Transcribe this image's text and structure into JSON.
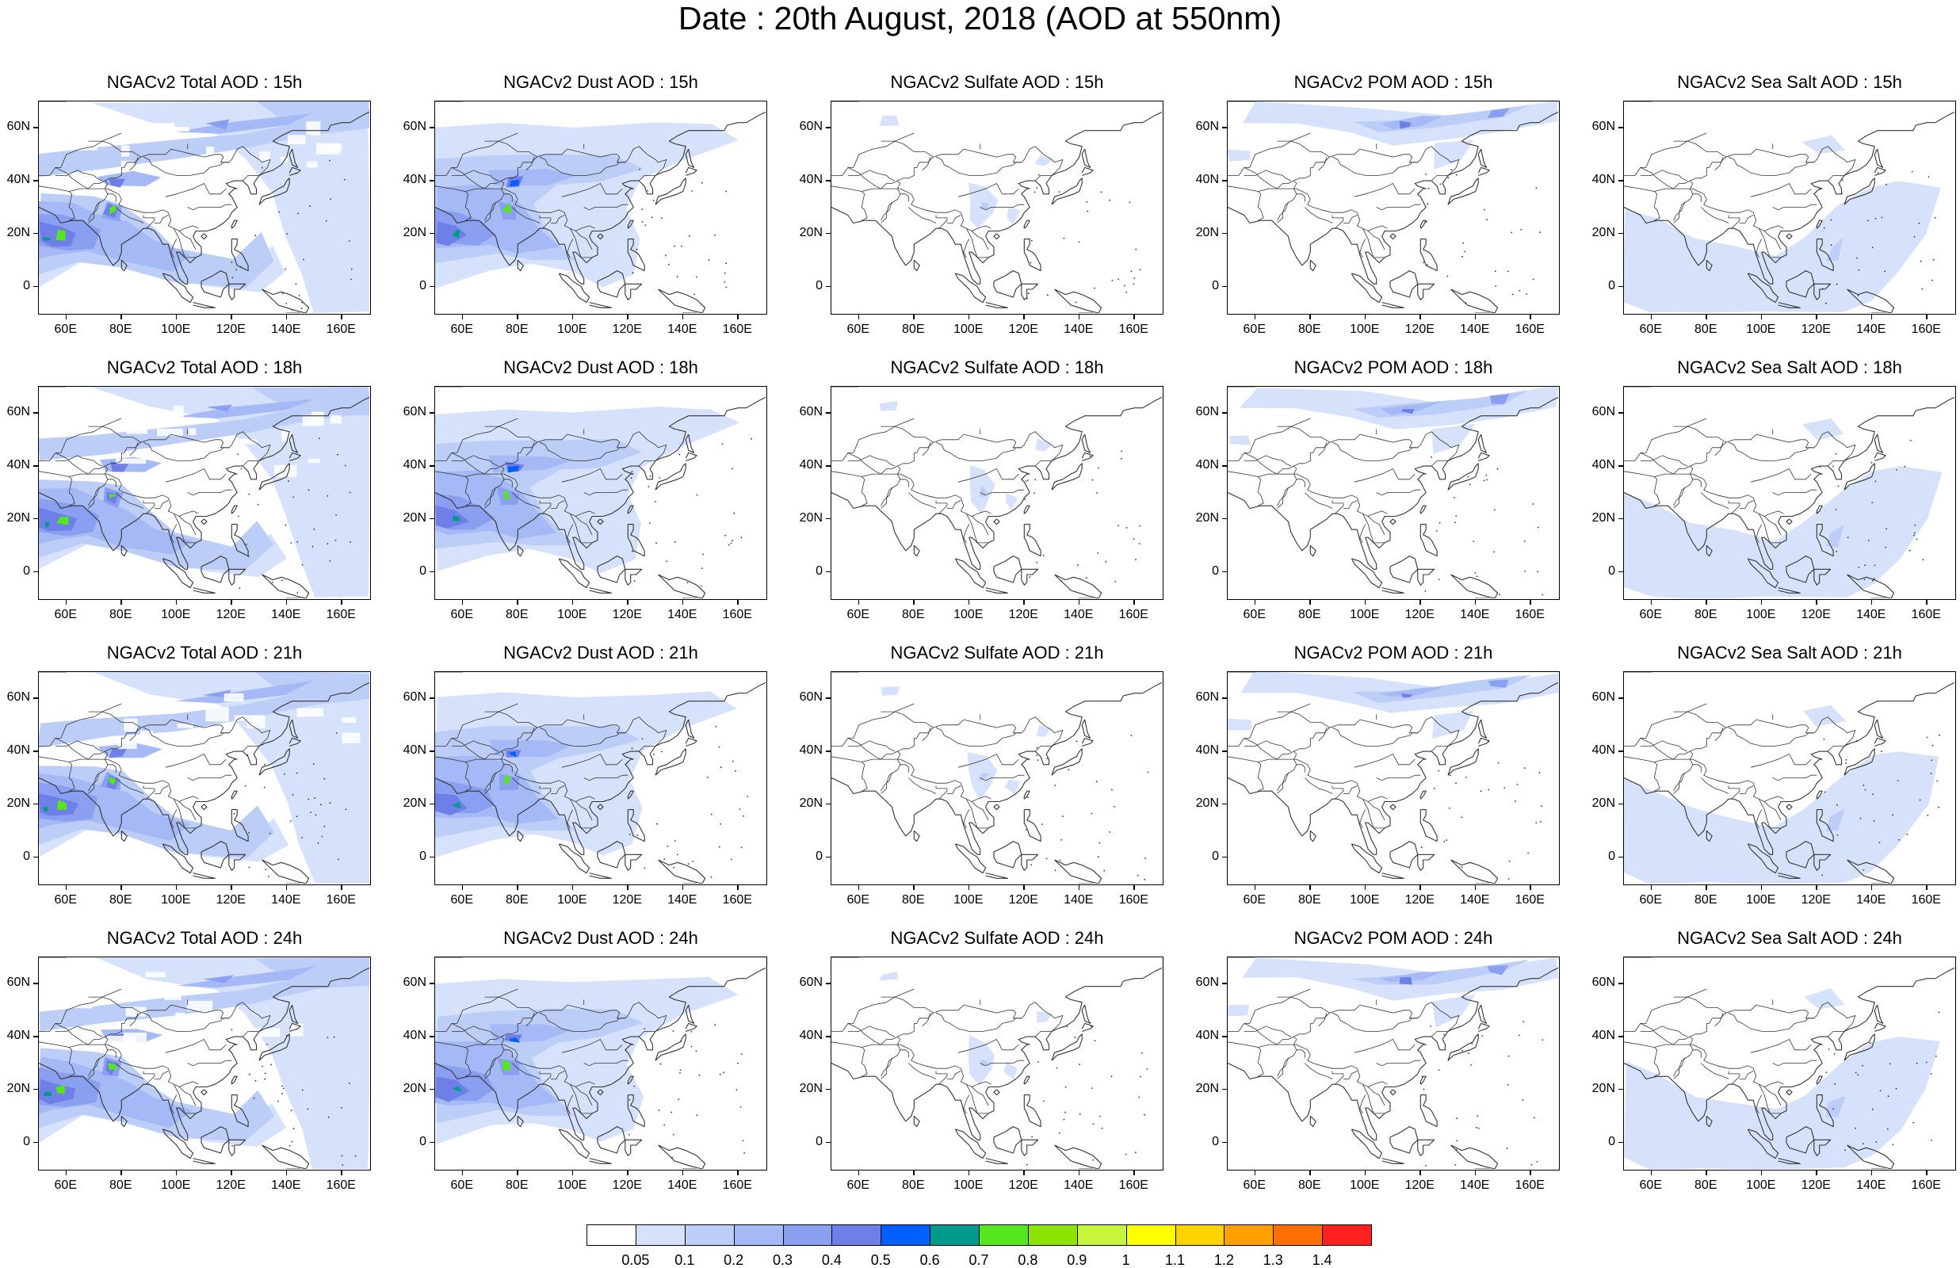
{
  "title": "Date : 20th August, 2018 (AOD at 550nm)",
  "lat_ticks": [
    "60N",
    "40N",
    "20N",
    "0"
  ],
  "lon_ticks": [
    "60E",
    "80E",
    "100E",
    "120E",
    "140E",
    "160E"
  ],
  "map_extent": {
    "lon": [
      50,
      170
    ],
    "lat": [
      -10,
      70
    ]
  },
  "colorbar": {
    "levels": [
      "0.05",
      "0.1",
      "0.2",
      "0.3",
      "0.4",
      "0.5",
      "0.6",
      "0.7",
      "0.8",
      "0.9",
      "1",
      "1.1",
      "1.2",
      "1.3",
      "1.4"
    ],
    "colors": [
      "#ffffff",
      "#d6e2fb",
      "#bccdf8",
      "#a4b9f5",
      "#8a9ff0",
      "#6f7fe8",
      "#0060ff",
      "#009a8c",
      "#55e61e",
      "#8ce400",
      "#c6f53c",
      "#ffff00",
      "#ffd200",
      "#ff9f00",
      "#ff6e00",
      "#ff2020"
    ]
  },
  "panels": [
    {
      "title": "NGACv2 Total AOD : 15h",
      "type": "total"
    },
    {
      "title": "NGACv2 Dust AOD : 15h",
      "type": "dust"
    },
    {
      "title": "NGACv2 Sulfate AOD : 15h",
      "type": "sulfate"
    },
    {
      "title": "NGACv2 POM AOD : 15h",
      "type": "pom"
    },
    {
      "title": "NGACv2 Sea Salt AOD : 15h",
      "type": "seasalt"
    },
    {
      "title": "NGACv2 Total AOD : 18h",
      "type": "total"
    },
    {
      "title": "NGACv2 Dust AOD : 18h",
      "type": "dust"
    },
    {
      "title": "NGACv2 Sulfate AOD : 18h",
      "type": "sulfate"
    },
    {
      "title": "NGACv2 POM AOD : 18h",
      "type": "pom"
    },
    {
      "title": "NGACv2 Sea Salt AOD : 18h",
      "type": "seasalt"
    },
    {
      "title": "NGACv2 Total AOD : 21h",
      "type": "total"
    },
    {
      "title": "NGACv2 Dust AOD : 21h",
      "type": "dust"
    },
    {
      "title": "NGACv2 Sulfate AOD : 21h",
      "type": "sulfate"
    },
    {
      "title": "NGACv2 POM AOD : 21h",
      "type": "pom"
    },
    {
      "title": "NGACv2 Sea Salt AOD : 21h",
      "type": "seasalt"
    },
    {
      "title": "NGACv2 Total AOD : 24h",
      "type": "total"
    },
    {
      "title": "NGACv2 Dust AOD : 24h",
      "type": "dust"
    },
    {
      "title": "NGACv2 Sulfate AOD : 24h",
      "type": "sulfate"
    },
    {
      "title": "NGACv2 POM AOD : 24h",
      "type": "pom"
    },
    {
      "title": "NGACv2 Sea Salt  AOD : 24h",
      "type": "seasalt"
    }
  ]
}
